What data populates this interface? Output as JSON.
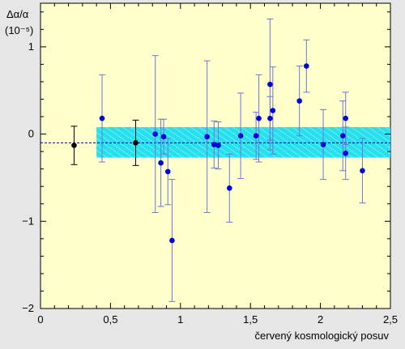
{
  "chart_data": {
    "type": "scatter",
    "ylabel": "Δα/α",
    "yunit": "(10⁻⁵)",
    "xlabel": "červený kosmologický posuv",
    "xlim": [
      0,
      2.5
    ],
    "ylim": [
      -2,
      1.5
    ],
    "x_ticks": [
      0,
      0.5,
      1,
      1.5,
      2,
      2.5
    ],
    "x_tick_labels": [
      "0",
      "0,5",
      "1",
      "1,5",
      "2",
      "2,5"
    ],
    "y_ticks": [
      -2,
      -1,
      0,
      1
    ],
    "y_tick_labels": [
      "−2",
      "−1",
      "0",
      "1"
    ],
    "grid": false,
    "colors": {
      "plot_background": "#ffffcc",
      "page_background": "#e6e6e6",
      "points": "#0000dd",
      "error_bars_blue": "#6a78d6",
      "error_bars_black": "#000000",
      "band": "#26e0ee",
      "mean_line": "#0000aa"
    },
    "mean_line": {
      "y": -0.1,
      "style": "dashed"
    },
    "band": {
      "x_start": 0.4,
      "x_end": 2.5,
      "y_low": -0.27,
      "y_high": 0.08,
      "pattern": "hatched"
    },
    "series": [
      {
        "marker_color": "#000000",
        "points": [
          {
            "x": 0.24,
            "y": -0.13,
            "err": 0.22
          },
          {
            "x": 0.68,
            "y": -0.1,
            "err": 0.26
          }
        ]
      },
      {
        "marker_color": "#0000dd",
        "points": [
          {
            "x": 0.44,
            "y": 0.18,
            "err": 0.5
          },
          {
            "x": 0.82,
            "y": 0.0,
            "err": 0.9
          },
          {
            "x": 0.86,
            "y": -0.33,
            "err": 0.5
          },
          {
            "x": 0.88,
            "y": -0.03,
            "err": 0.2
          },
          {
            "x": 0.91,
            "y": -0.43,
            "err": 0.38
          },
          {
            "x": 0.94,
            "y": -1.22,
            "err": 0.7
          },
          {
            "x": 1.19,
            "y": -0.03,
            "err": 0.87
          },
          {
            "x": 1.24,
            "y": -0.12,
            "err": 0.27
          },
          {
            "x": 1.27,
            "y": -0.13,
            "err": 0.27
          },
          {
            "x": 1.35,
            "y": -0.62,
            "err": 0.39
          },
          {
            "x": 1.43,
            "y": -0.02,
            "err": 0.49
          },
          {
            "x": 1.54,
            "y": -0.02,
            "err": 0.27
          },
          {
            "x": 1.56,
            "y": 0.18,
            "err": 0.5
          },
          {
            "x": 1.64,
            "y": 0.57,
            "err": 0.75
          },
          {
            "x": 1.64,
            "y": 0.18,
            "err": 0.25
          },
          {
            "x": 1.66,
            "y": 0.27,
            "err": 0.5
          },
          {
            "x": 1.85,
            "y": 0.38,
            "err": 0.4
          },
          {
            "x": 1.9,
            "y": 0.78,
            "err": 0.3
          },
          {
            "x": 2.02,
            "y": -0.12,
            "err": 0.4
          },
          {
            "x": 2.16,
            "y": -0.02,
            "err": 0.4
          },
          {
            "x": 2.18,
            "y": 0.18,
            "err": 0.3
          },
          {
            "x": 2.18,
            "y": -0.22,
            "err": 0.3
          },
          {
            "x": 2.3,
            "y": -0.42,
            "err": 0.37
          }
        ]
      }
    ]
  }
}
